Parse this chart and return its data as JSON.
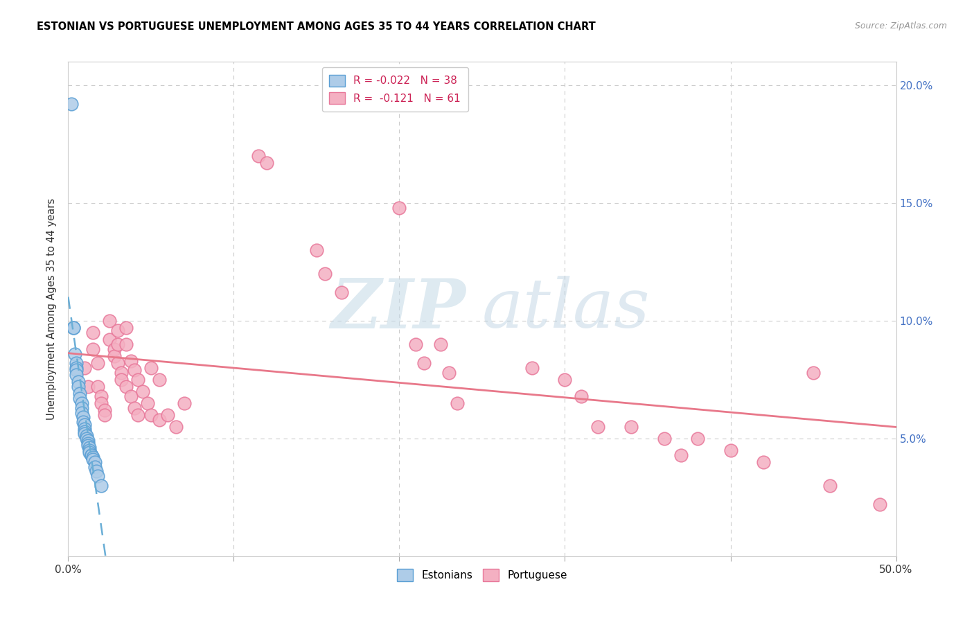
{
  "title": "ESTONIAN VS PORTUGUESE UNEMPLOYMENT AMONG AGES 35 TO 44 YEARS CORRELATION CHART",
  "source": "Source: ZipAtlas.com",
  "ylabel": "Unemployment Among Ages 35 to 44 years",
  "xlim": [
    0.0,
    0.5
  ],
  "ylim": [
    0.0,
    0.21
  ],
  "xtick_positions": [
    0.0,
    0.1,
    0.2,
    0.3,
    0.4,
    0.5
  ],
  "ytick_right_positions": [
    0.05,
    0.1,
    0.15,
    0.2
  ],
  "ytick_right_labels": [
    "5.0%",
    "10.0%",
    "15.0%",
    "20.0%"
  ],
  "estonian_R": -0.022,
  "estonian_N": 38,
  "portuguese_R": -0.121,
  "portuguese_N": 61,
  "estonian_color": "#aecce8",
  "portuguese_color": "#f4b0c2",
  "estonian_edge_color": "#5a9fd4",
  "portuguese_edge_color": "#e8789a",
  "estonian_line_color": "#6aaed6",
  "portuguese_line_color": "#e8788a",
  "grid_color": "#cccccc",
  "watermark_zip_color": "#c0d8e8",
  "watermark_atlas_color": "#b0cce0",
  "estonian_points": [
    [
      0.002,
      0.192
    ],
    [
      0.003,
      0.097
    ],
    [
      0.003,
      0.097
    ],
    [
      0.004,
      0.086
    ],
    [
      0.005,
      0.082
    ],
    [
      0.005,
      0.08
    ],
    [
      0.005,
      0.079
    ],
    [
      0.005,
      0.077
    ],
    [
      0.006,
      0.074
    ],
    [
      0.006,
      0.072
    ],
    [
      0.007,
      0.069
    ],
    [
      0.007,
      0.067
    ],
    [
      0.008,
      0.065
    ],
    [
      0.008,
      0.063
    ],
    [
      0.008,
      0.061
    ],
    [
      0.009,
      0.059
    ],
    [
      0.009,
      0.057
    ],
    [
      0.01,
      0.056
    ],
    [
      0.01,
      0.054
    ],
    [
      0.01,
      0.053
    ],
    [
      0.01,
      0.052
    ],
    [
      0.011,
      0.051
    ],
    [
      0.011,
      0.05
    ],
    [
      0.012,
      0.049
    ],
    [
      0.012,
      0.048
    ],
    [
      0.012,
      0.047
    ],
    [
      0.013,
      0.046
    ],
    [
      0.013,
      0.045
    ],
    [
      0.013,
      0.044
    ],
    [
      0.014,
      0.043
    ],
    [
      0.014,
      0.043
    ],
    [
      0.015,
      0.042
    ],
    [
      0.015,
      0.041
    ],
    [
      0.016,
      0.04
    ],
    [
      0.016,
      0.038
    ],
    [
      0.017,
      0.036
    ],
    [
      0.018,
      0.034
    ],
    [
      0.02,
      0.03
    ]
  ],
  "portuguese_points": [
    [
      0.01,
      0.08
    ],
    [
      0.012,
      0.072
    ],
    [
      0.015,
      0.095
    ],
    [
      0.015,
      0.088
    ],
    [
      0.018,
      0.082
    ],
    [
      0.018,
      0.072
    ],
    [
      0.02,
      0.068
    ],
    [
      0.02,
      0.065
    ],
    [
      0.022,
      0.062
    ],
    [
      0.022,
      0.06
    ],
    [
      0.025,
      0.1
    ],
    [
      0.025,
      0.092
    ],
    [
      0.028,
      0.088
    ],
    [
      0.028,
      0.085
    ],
    [
      0.03,
      0.096
    ],
    [
      0.03,
      0.09
    ],
    [
      0.03,
      0.082
    ],
    [
      0.032,
      0.078
    ],
    [
      0.032,
      0.075
    ],
    [
      0.035,
      0.097
    ],
    [
      0.035,
      0.09
    ],
    [
      0.035,
      0.072
    ],
    [
      0.038,
      0.083
    ],
    [
      0.038,
      0.068
    ],
    [
      0.04,
      0.079
    ],
    [
      0.04,
      0.063
    ],
    [
      0.042,
      0.075
    ],
    [
      0.042,
      0.06
    ],
    [
      0.045,
      0.07
    ],
    [
      0.048,
      0.065
    ],
    [
      0.05,
      0.08
    ],
    [
      0.05,
      0.06
    ],
    [
      0.055,
      0.075
    ],
    [
      0.055,
      0.058
    ],
    [
      0.06,
      0.06
    ],
    [
      0.065,
      0.055
    ],
    [
      0.07,
      0.065
    ],
    [
      0.115,
      0.17
    ],
    [
      0.12,
      0.167
    ],
    [
      0.15,
      0.13
    ],
    [
      0.155,
      0.12
    ],
    [
      0.165,
      0.112
    ],
    [
      0.2,
      0.148
    ],
    [
      0.21,
      0.09
    ],
    [
      0.215,
      0.082
    ],
    [
      0.225,
      0.09
    ],
    [
      0.23,
      0.078
    ],
    [
      0.235,
      0.065
    ],
    [
      0.28,
      0.08
    ],
    [
      0.3,
      0.075
    ],
    [
      0.31,
      0.068
    ],
    [
      0.32,
      0.055
    ],
    [
      0.34,
      0.055
    ],
    [
      0.36,
      0.05
    ],
    [
      0.37,
      0.043
    ],
    [
      0.38,
      0.05
    ],
    [
      0.4,
      0.045
    ],
    [
      0.42,
      0.04
    ],
    [
      0.45,
      0.078
    ],
    [
      0.46,
      0.03
    ],
    [
      0.49,
      0.022
    ]
  ]
}
